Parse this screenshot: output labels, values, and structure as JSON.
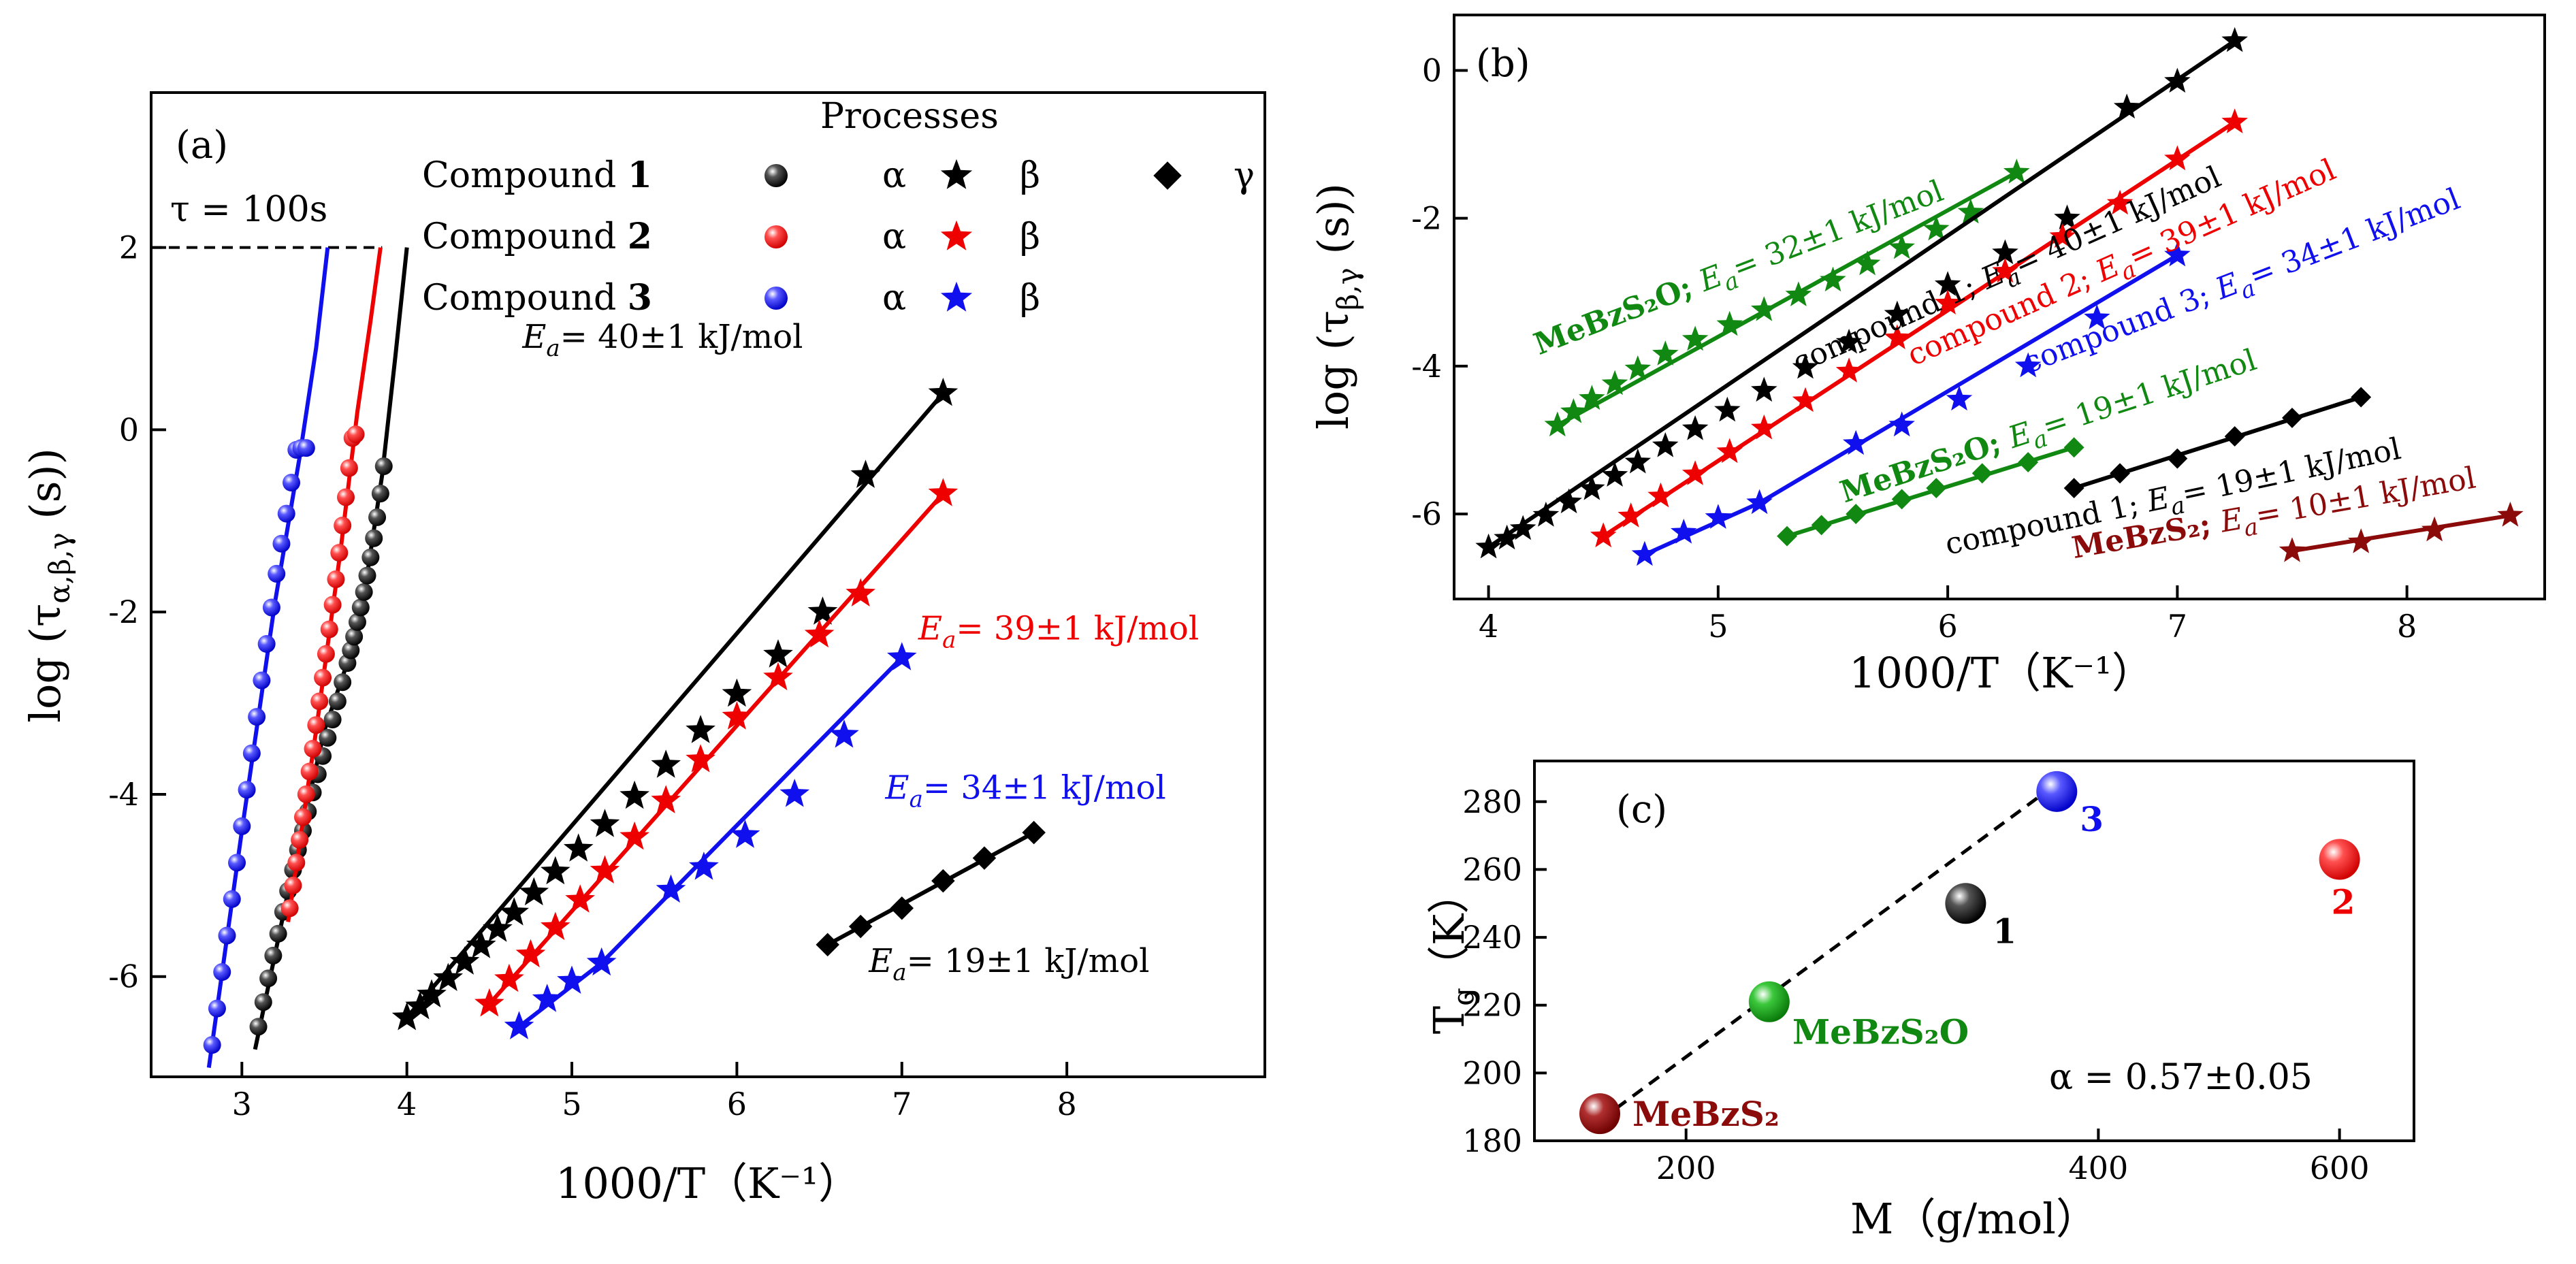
{
  "chart_data": [
    {
      "id": "a",
      "type": "scatter",
      "panel_label": "(a)",
      "xlabel": "1000/T（K⁻¹）",
      "ylabel": "log (τα,β,γ (s))",
      "xlim": [
        2.45,
        9.2
      ],
      "ylim": [
        -7.1,
        3.7
      ],
      "xticks": [
        3,
        4,
        5,
        6,
        7,
        8
      ],
      "yticks": [
        -6,
        -4,
        -2,
        0,
        2
      ],
      "tau_line": {
        "y": 2,
        "x_end": 3.85,
        "label": "τ = 100s"
      },
      "legend": {
        "title": "Processes",
        "rows": [
          {
            "label": "Compound ",
            "label_bold": "1",
            "color": "#000000",
            "items": [
              "α",
              "β",
              "γ"
            ]
          },
          {
            "label": "Compound ",
            "label_bold": "2",
            "color": "#ee0000",
            "items": [
              "α",
              "β"
            ]
          },
          {
            "label": "Compound ",
            "label_bold": "3",
            "color": "#1010ee",
            "items": [
              "α",
              "β"
            ]
          }
        ]
      },
      "series": [
        {
          "name": "Compound 1 α",
          "color": "#000000",
          "marker": "sphere",
          "x": [
            3.1,
            3.13,
            3.16,
            3.19,
            3.22,
            3.25,
            3.28,
            3.31,
            3.34,
            3.37,
            3.4,
            3.43,
            3.46,
            3.49,
            3.52,
            3.55,
            3.58,
            3.61,
            3.64,
            3.66,
            3.68,
            3.7,
            3.72,
            3.74,
            3.76,
            3.78,
            3.8,
            3.82,
            3.84,
            3.86
          ],
          "y": [
            -6.55,
            -6.28,
            -6.02,
            -5.77,
            -5.53,
            -5.29,
            -5.06,
            -4.83,
            -4.61,
            -4.4,
            -4.19,
            -3.98,
            -3.78,
            -3.58,
            -3.38,
            -3.18,
            -2.98,
            -2.77,
            -2.56,
            -2.42,
            -2.27,
            -2.11,
            -1.95,
            -1.78,
            -1.6,
            -1.4,
            -1.19,
            -0.96,
            -0.7,
            -0.4
          ],
          "fit": {
            "x": [
              3.08,
              3.3,
              3.5,
              3.65,
              3.75,
              3.85,
              3.93,
              4.0
            ],
            "y": [
              -6.8,
              -4.9,
              -3.3,
              -2.5,
              -1.7,
              -0.5,
              0.8,
              2.0
            ]
          }
        },
        {
          "name": "Compound 2 α",
          "color": "#ee0000",
          "marker": "sphere",
          "x": [
            3.29,
            3.31,
            3.33,
            3.35,
            3.37,
            3.39,
            3.41,
            3.43,
            3.45,
            3.47,
            3.49,
            3.51,
            3.53,
            3.55,
            3.57,
            3.59,
            3.61,
            3.63,
            3.65,
            3.67,
            3.69
          ],
          "y": [
            -5.25,
            -5.0,
            -4.75,
            -4.5,
            -4.25,
            -4.0,
            -3.75,
            -3.5,
            -3.24,
            -2.98,
            -2.72,
            -2.46,
            -2.19,
            -1.92,
            -1.64,
            -1.35,
            -1.05,
            -0.74,
            -0.42,
            -0.09,
            -0.05
          ],
          "fit": {
            "x": [
              3.28,
              3.45,
              3.6,
              3.7,
              3.78,
              3.84
            ],
            "y": [
              -5.4,
              -3.3,
              -1.3,
              0.2,
              1.2,
              2.0
            ]
          }
        },
        {
          "name": "Compound 3 α",
          "color": "#1010ee",
          "marker": "sphere",
          "x": [
            2.82,
            2.85,
            2.88,
            2.91,
            2.94,
            2.97,
            3.0,
            3.03,
            3.06,
            3.09,
            3.12,
            3.15,
            3.18,
            3.21,
            3.24,
            3.27,
            3.3,
            3.33,
            3.36,
            3.39
          ],
          "y": [
            -6.75,
            -6.35,
            -5.95,
            -5.55,
            -5.15,
            -4.75,
            -4.35,
            -3.95,
            -3.55,
            -3.15,
            -2.75,
            -2.35,
            -1.95,
            -1.58,
            -1.25,
            -0.92,
            -0.58,
            -0.22,
            -0.2,
            -0.2
          ],
          "fit": {
            "x": [
              2.8,
              3.0,
              3.2,
              3.35,
              3.45,
              3.52
            ],
            "y": [
              -7.0,
              -4.4,
              -1.9,
              -0.3,
              0.9,
              2.0
            ]
          }
        },
        {
          "name": "Compound 1 β",
          "color": "#000000",
          "marker": "star",
          "x": [
            4.0,
            4.08,
            4.15,
            4.25,
            4.35,
            4.45,
            4.55,
            4.65,
            4.77,
            4.9,
            5.04,
            5.2,
            5.38,
            5.57,
            5.78,
            6.0,
            6.25,
            6.52,
            6.78,
            7.25
          ],
          "y": [
            -6.45,
            -6.33,
            -6.2,
            -6.02,
            -5.84,
            -5.66,
            -5.48,
            -5.3,
            -5.08,
            -4.85,
            -4.6,
            -4.33,
            -4.02,
            -3.68,
            -3.3,
            -2.9,
            -2.47,
            -2.0,
            -0.5,
            0.4
          ],
          "fit": {
            "x": [
              4.0,
              7.25
            ],
            "y": [
              -6.45,
              0.4
            ]
          }
        },
        {
          "name": "Compound 2 β",
          "color": "#ee0000",
          "marker": "star",
          "x": [
            4.5,
            4.62,
            4.75,
            4.9,
            5.05,
            5.2,
            5.38,
            5.57,
            5.78,
            6.0,
            6.25,
            6.5,
            6.75,
            7.25
          ],
          "y": [
            -6.3,
            -6.03,
            -5.76,
            -5.46,
            -5.16,
            -4.84,
            -4.47,
            -4.07,
            -3.62,
            -3.15,
            -2.72,
            -2.25,
            -1.8,
            -0.7
          ],
          "fit": {
            "x": [
              4.5,
              7.25
            ],
            "y": [
              -6.3,
              -0.7
            ]
          }
        },
        {
          "name": "Compound 3 β",
          "color": "#1010ee",
          "marker": "star",
          "x": [
            4.68,
            4.85,
            5.0,
            5.18,
            5.6,
            5.8,
            6.05,
            6.35,
            6.65,
            7.0
          ],
          "y": [
            -6.55,
            -6.25,
            -6.05,
            -5.85,
            -5.05,
            -4.8,
            -4.45,
            -4.0,
            -3.35,
            -2.5
          ],
          "fit": {
            "x": [
              4.68,
              5.18,
              7.0
            ],
            "y": [
              -6.55,
              -5.85,
              -2.5
            ]
          }
        },
        {
          "name": "Compound 1 γ",
          "color": "#000000",
          "marker": "diamond",
          "x": [
            6.55,
            6.75,
            7.0,
            7.25,
            7.5,
            7.8
          ],
          "y": [
            -5.65,
            -5.45,
            -5.25,
            -4.95,
            -4.7,
            -4.42
          ],
          "fit": {
            "x": [
              6.55,
              7.8
            ],
            "y": [
              -5.65,
              -4.42
            ]
          }
        }
      ],
      "annotations": [
        {
          "text": "= 40±1 kJ/mol",
          "color": "#000000",
          "x": 4.7,
          "y": 0.9
        },
        {
          "text": "= 39±1 kJ/mol",
          "color": "#ee0000",
          "x": 7.1,
          "y": -2.3
        },
        {
          "text": "= 34±1 kJ/mol",
          "color": "#1010ee",
          "x": 6.9,
          "y": -4.05
        },
        {
          "text": "= 19±1 kJ/mol",
          "color": "#000000",
          "x": 6.8,
          "y": -5.95
        }
      ]
    },
    {
      "id": "b",
      "type": "scatter",
      "panel_label": "(b)",
      "xlabel": "1000/T（K⁻¹）",
      "ylabel": "log (τβ,γ (s))",
      "xlim": [
        3.85,
        8.6
      ],
      "ylim": [
        -7.15,
        0.75
      ],
      "xticks": [
        4,
        5,
        6,
        7,
        8
      ],
      "yticks": [
        -6,
        -4,
        -2,
        0
      ],
      "series": [
        {
          "name": "MeBzS2O β",
          "color": "#118811",
          "marker": "star",
          "x": [
            4.3,
            4.37,
            4.45,
            4.55,
            4.65,
            4.77,
            4.9,
            5.05,
            5.2,
            5.35,
            5.5,
            5.65,
            5.8,
            5.95,
            6.1,
            6.3
          ],
          "y": [
            -4.8,
            -4.62,
            -4.44,
            -4.24,
            -4.04,
            -3.84,
            -3.64,
            -3.44,
            -3.24,
            -3.04,
            -2.84,
            -2.62,
            -2.4,
            -2.15,
            -1.92,
            -1.38
          ],
          "fit": {
            "x": [
              4.3,
              6.3
            ],
            "y": [
              -4.8,
              -1.38
            ]
          }
        },
        {
          "name": "compound 1 β",
          "color": "#000000",
          "marker": "star",
          "x": [
            4.0,
            4.08,
            4.15,
            4.25,
            4.35,
            4.45,
            4.55,
            4.65,
            4.77,
            4.9,
            5.04,
            5.2,
            5.38,
            5.57,
            5.78,
            6.0,
            6.25,
            6.52,
            6.78,
            7.0,
            7.25
          ],
          "y": [
            -6.45,
            -6.33,
            -6.2,
            -6.02,
            -5.84,
            -5.66,
            -5.48,
            -5.3,
            -5.08,
            -4.85,
            -4.6,
            -4.33,
            -4.02,
            -3.68,
            -3.3,
            -2.9,
            -2.47,
            -2.0,
            -0.5,
            -0.15,
            0.4
          ],
          "fit": {
            "x": [
              4.0,
              7.25
            ],
            "y": [
              -6.45,
              0.4
            ]
          }
        },
        {
          "name": "compound 2 β",
          "color": "#ee0000",
          "marker": "star",
          "x": [
            4.5,
            4.62,
            4.75,
            4.9,
            5.05,
            5.2,
            5.38,
            5.57,
            5.78,
            6.0,
            6.25,
            6.5,
            6.75,
            7.0,
            7.25
          ],
          "y": [
            -6.3,
            -6.03,
            -5.76,
            -5.46,
            -5.16,
            -4.84,
            -4.47,
            -4.07,
            -3.62,
            -3.15,
            -2.72,
            -2.25,
            -1.8,
            -1.2,
            -0.7
          ],
          "fit": {
            "x": [
              4.5,
              7.25
            ],
            "y": [
              -6.3,
              -0.7
            ]
          }
        },
        {
          "name": "compound 3 β",
          "color": "#1010ee",
          "marker": "star",
          "x": [
            4.68,
            4.85,
            5.0,
            5.18,
            5.6,
            5.8,
            6.05,
            6.35,
            6.65,
            7.0
          ],
          "y": [
            -6.55,
            -6.25,
            -6.05,
            -5.85,
            -5.05,
            -4.8,
            -4.45,
            -4.0,
            -3.35,
            -2.5
          ],
          "fit": {
            "x": [
              4.68,
              5.18,
              7.0
            ],
            "y": [
              -6.55,
              -5.85,
              -2.5
            ]
          }
        },
        {
          "name": "MeBzS2O γ",
          "color": "#118811",
          "marker": "diamond",
          "x": [
            5.3,
            5.45,
            5.6,
            5.8,
            5.95,
            6.15,
            6.35,
            6.55
          ],
          "y": [
            -6.3,
            -6.15,
            -6.0,
            -5.8,
            -5.65,
            -5.45,
            -5.3,
            -5.1
          ],
          "fit": {
            "x": [
              5.3,
              6.55
            ],
            "y": [
              -6.3,
              -5.1
            ]
          }
        },
        {
          "name": "compound 1 γ",
          "color": "#000000",
          "marker": "diamond",
          "x": [
            6.55,
            6.75,
            7.0,
            7.25,
            7.5,
            7.8
          ],
          "y": [
            -5.65,
            -5.45,
            -5.25,
            -4.95,
            -4.7,
            -4.42
          ],
          "fit": {
            "x": [
              6.55,
              7.8
            ],
            "y": [
              -5.65,
              -4.42
            ]
          }
        },
        {
          "name": "MeBzS2 γ",
          "color": "#8b0a0a",
          "marker": "star",
          "x": [
            7.5,
            7.8,
            8.12,
            8.45
          ],
          "y": [
            -6.5,
            -6.38,
            -6.22,
            -6.02
          ],
          "fit": {
            "x": [
              7.5,
              8.45
            ],
            "y": [
              -6.5,
              -6.02
            ]
          }
        }
      ],
      "annotations": [
        {
          "name": "MeBzS₂O",
          "value": "= 32±1 kJ/mol",
          "color": "#118811",
          "x": 4.22,
          "y": -3.85,
          "angle": -21
        },
        {
          "name": "compound 1",
          "value": "= 40±1 kJ/mol",
          "color": "#000000",
          "x": 5.35,
          "y": -4.1,
          "angle": -24
        },
        {
          "name": "compound 2",
          "value": "= 39±1 kJ/mol",
          "color": "#ee0000",
          "x": 5.85,
          "y": -4.0,
          "angle": -24
        },
        {
          "name": "compound 3",
          "value": "= 34±1 kJ/mol",
          "color": "#1010ee",
          "x": 6.35,
          "y": -4.1,
          "angle": -21
        },
        {
          "name": "MeBzS₂O",
          "value": "= 19±1 kJ/mol",
          "color": "#118811",
          "x": 5.55,
          "y": -5.85,
          "angle": -18
        },
        {
          "name": "compound 1",
          "value": "= 19±1 kJ/mol",
          "color": "#000000",
          "x": 6.0,
          "y": -6.55,
          "angle": -12
        },
        {
          "name": "MeBzS₂",
          "value": "= 10±1 kJ/mol",
          "color": "#8b0a0a",
          "x": 6.55,
          "y": -6.6,
          "angle": -10
        }
      ]
    },
    {
      "id": "c",
      "type": "scatter",
      "panel_label": "(c)",
      "xlabel": "M（g/mol）",
      "ylabel": "Tg（K）",
      "xscale": "log",
      "xlim": [
        155,
        680
      ],
      "ylim": [
        180,
        292
      ],
      "xticks": [
        200,
        400,
        600
      ],
      "yticks": [
        180,
        200,
        220,
        240,
        260,
        280
      ],
      "alpha_label": "α = 0.57±0.05",
      "fit_line": {
        "x": [
          173,
          375
        ],
        "y": [
          186,
          286
        ]
      },
      "points": [
        {
          "label": "MeBzS₂",
          "M": 173,
          "Tg": 188,
          "color": "#8b0a0a"
        },
        {
          "label": "MeBzS₂O",
          "M": 230,
          "Tg": 221,
          "color": "#118811"
        },
        {
          "label": "1",
          "M": 320,
          "Tg": 250,
          "color": "#000000"
        },
        {
          "label": "3",
          "M": 373,
          "Tg": 283,
          "color": "#1010ee"
        },
        {
          "label": "2",
          "M": 600,
          "Tg": 263,
          "color": "#ee0000"
        }
      ]
    }
  ]
}
